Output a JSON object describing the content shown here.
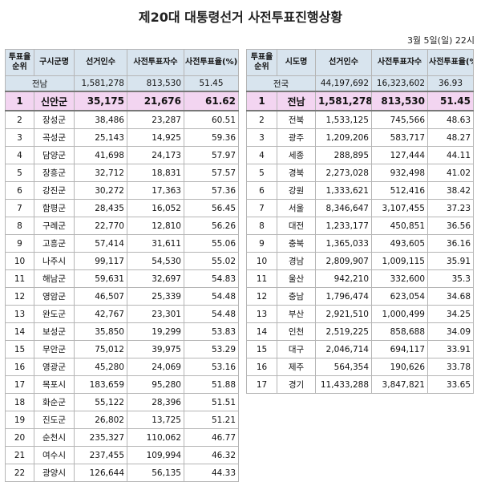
{
  "title": "제20대 대통령선거 사전투표진행상황",
  "date": "3월 5일(일) 22시",
  "left_table": {
    "headers": [
      "투표율\n순위",
      "구시군명",
      "선거인수",
      "사전투표자수",
      "사전투표율(%)"
    ],
    "total": [
      "",
      "전남",
      "1,581,278",
      "813,530",
      "51.45"
    ],
    "rows": [
      [
        "1",
        "신안군",
        "35,175",
        "21,676",
        "61.62"
      ],
      [
        "2",
        "장성군",
        "38,486",
        "23,287",
        "60.51"
      ],
      [
        "3",
        "곡성군",
        "25,143",
        "14,925",
        "59.36"
      ],
      [
        "4",
        "담양군",
        "41,698",
        "24,173",
        "57.97"
      ],
      [
        "5",
        "장흥군",
        "32,712",
        "18,831",
        "57.57"
      ],
      [
        "6",
        "강진군",
        "30,272",
        "17,363",
        "57.36"
      ],
      [
        "7",
        "함평군",
        "28,435",
        "16,052",
        "56.45"
      ],
      [
        "8",
        "구례군",
        "22,770",
        "12,810",
        "56.26"
      ],
      [
        "9",
        "고흥군",
        "57,414",
        "31,611",
        "55.06"
      ],
      [
        "10",
        "나주시",
        "99,117",
        "54,530",
        "55.02"
      ],
      [
        "11",
        "해남군",
        "59,631",
        "32,697",
        "54.83"
      ],
      [
        "12",
        "영암군",
        "46,507",
        "25,339",
        "54.48"
      ],
      [
        "13",
        "완도군",
        "42,767",
        "23,301",
        "54.48"
      ],
      [
        "14",
        "보성군",
        "35,850",
        "19,299",
        "53.83"
      ],
      [
        "15",
        "무안군",
        "75,012",
        "39,975",
        "53.29"
      ],
      [
        "16",
        "영광군",
        "45,280",
        "24,069",
        "53.16"
      ],
      [
        "17",
        "목포시",
        "183,659",
        "95,280",
        "51.88"
      ],
      [
        "18",
        "화순군",
        "55,122",
        "28,396",
        "51.51"
      ],
      [
        "19",
        "진도군",
        "26,802",
        "13,725",
        "51.21"
      ],
      [
        "20",
        "순천시",
        "235,327",
        "110,062",
        "46.77"
      ],
      [
        "21",
        "여수시",
        "237,455",
        "109,994",
        "46.32"
      ],
      [
        "22",
        "광양시",
        "126,644",
        "56,135",
        "44.33"
      ]
    ]
  },
  "right_table": {
    "headers": [
      "투표율\n순위",
      "시도명",
      "선거인수",
      "사전투표자수",
      "사전투표율(%)"
    ],
    "total": [
      "",
      "전국",
      "44,197,692",
      "16,323,602",
      "36.93"
    ],
    "rows": [
      [
        "1",
        "전남",
        "1,581,278",
        "813,530",
        "51.45"
      ],
      [
        "2",
        "전북",
        "1,533,125",
        "745,566",
        "48.63"
      ],
      [
        "3",
        "광주",
        "1,209,206",
        "583,717",
        "48.27"
      ],
      [
        "4",
        "세종",
        "288,895",
        "127,444",
        "44.11"
      ],
      [
        "5",
        "경북",
        "2,273,028",
        "932,498",
        "41.02"
      ],
      [
        "6",
        "강원",
        "1,333,621",
        "512,416",
        "38.42"
      ],
      [
        "7",
        "서울",
        "8,346,647",
        "3,107,455",
        "37.23"
      ],
      [
        "8",
        "대전",
        "1,233,177",
        "450,851",
        "36.56"
      ],
      [
        "9",
        "충북",
        "1,365,033",
        "493,605",
        "36.16"
      ],
      [
        "10",
        "경남",
        "2,809,907",
        "1,009,115",
        "35.91"
      ],
      [
        "11",
        "울산",
        "942,210",
        "332,600",
        "35.3"
      ],
      [
        "12",
        "충남",
        "1,796,474",
        "623,054",
        "34.68"
      ],
      [
        "13",
        "부산",
        "2,921,510",
        "1,000,499",
        "34.25"
      ],
      [
        "14",
        "인천",
        "2,519,225",
        "858,688",
        "34.09"
      ],
      [
        "15",
        "대구",
        "2,046,714",
        "694,117",
        "33.91"
      ],
      [
        "16",
        "제주",
        "564,354",
        "190,626",
        "33.78"
      ],
      [
        "17",
        "경기",
        "11,433,288",
        "3,847,821",
        "33.65"
      ]
    ]
  }
}
